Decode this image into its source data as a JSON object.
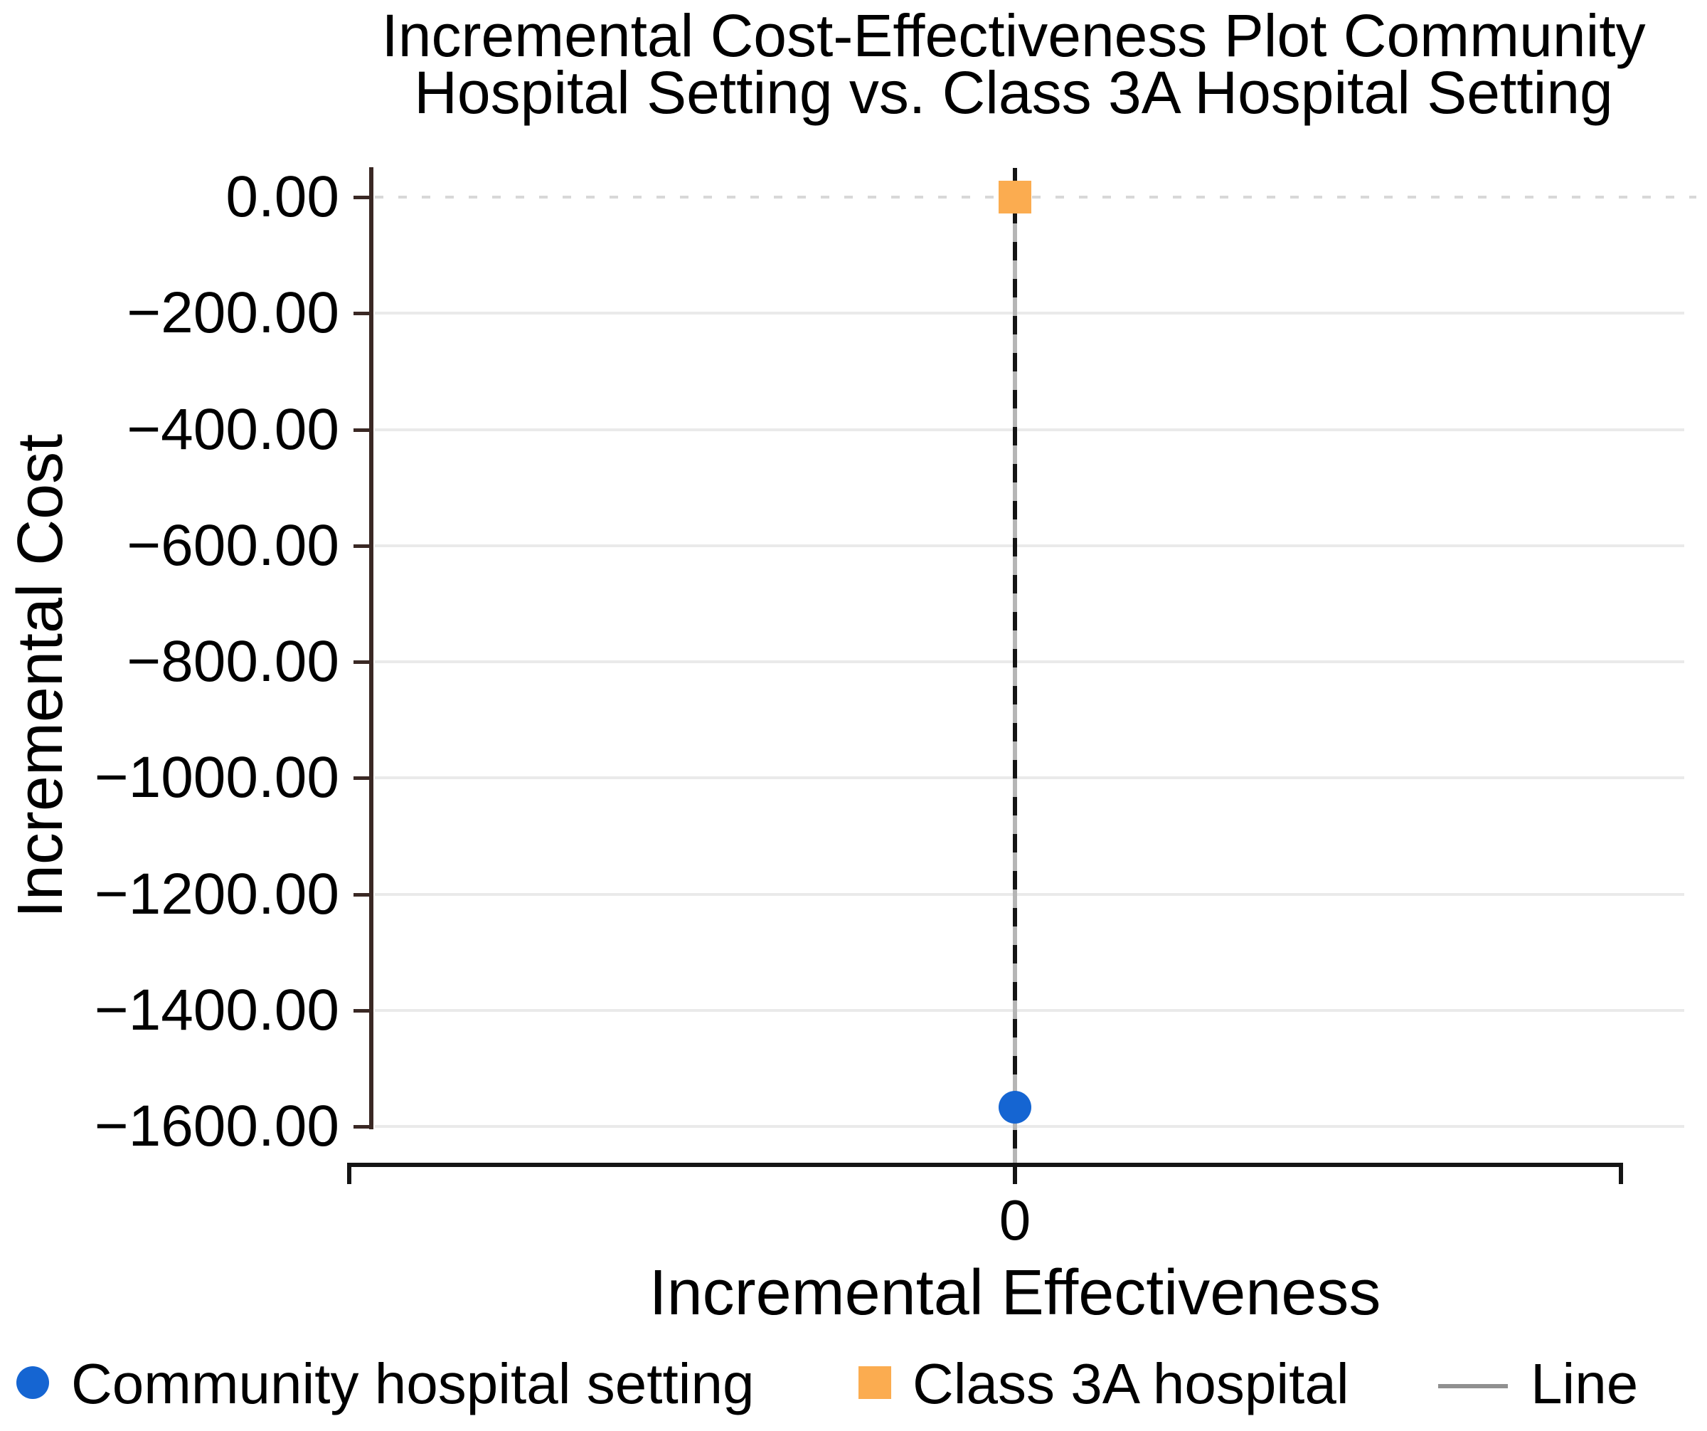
{
  "title": {
    "line1": "Incremental Cost-Effectiveness Plot Community",
    "line2": "Hospital Setting vs. Class 3A Hospital Setting"
  },
  "colors": {
    "community_blue": "#1565d2",
    "class3a_orange": "#fbac50",
    "y_axis_spine": "#3a2824",
    "x_axis_line": "#141414",
    "gridline": "#eaeaea",
    "zero_dashed_line": "#d8d8d8",
    "vertical_line_gray": "#b5b5b5",
    "legend_line_gray": "#909090"
  },
  "chart_data": {
    "type": "scatter",
    "title": "Incremental Cost-Effectiveness Plot Community Hospital Setting vs. Class 3A Hospital Setting",
    "xlabel": "Incremental Effectiveness",
    "ylabel": "Incremental Cost",
    "x_ticks": [
      "0"
    ],
    "y_ticks": {
      "labels": [
        "0.00",
        "−200.00",
        "−400.00",
        "−600.00",
        "−800.00",
        "−1000.00",
        "−1200.00",
        "−1400.00",
        "−1600.00"
      ],
      "values": [
        0,
        -200,
        -400,
        -600,
        -800,
        -1000,
        -1200,
        -1400,
        -1600
      ]
    },
    "xlim": [
      -1,
      1
    ],
    "ylim": [
      -1660,
      50
    ],
    "grid": "horizontal-light-gray",
    "legend_position": "bottom",
    "series": [
      {
        "name": "Community hospital setting",
        "type": "point",
        "marker": "circle",
        "color": "#1565d2",
        "points": [
          {
            "x": 0,
            "y": -1567
          }
        ]
      },
      {
        "name": "Class 3A hospital",
        "type": "point",
        "marker": "square",
        "color": "#fbac50",
        "points": [
          {
            "x": 0,
            "y": 0
          }
        ]
      },
      {
        "name": "Line",
        "type": "line",
        "color": "#909090",
        "points": [
          {
            "x": 0,
            "y": 0
          },
          {
            "x": 0,
            "y": -1567
          }
        ]
      }
    ],
    "reference_lines": [
      {
        "axis": "y",
        "value": 0,
        "style": "dashed",
        "color": "#d8d8d8"
      },
      {
        "axis": "x",
        "value": 0,
        "style": "dashed",
        "color": "#141414"
      }
    ]
  },
  "legend": {
    "items": [
      {
        "label": "Community hospital setting",
        "marker": "circle",
        "color": "#1565d2"
      },
      {
        "label": "Class 3A hospital",
        "marker": "square",
        "color": "#fbac50"
      },
      {
        "label": "Line",
        "marker": "line",
        "color": "#909090"
      }
    ]
  }
}
